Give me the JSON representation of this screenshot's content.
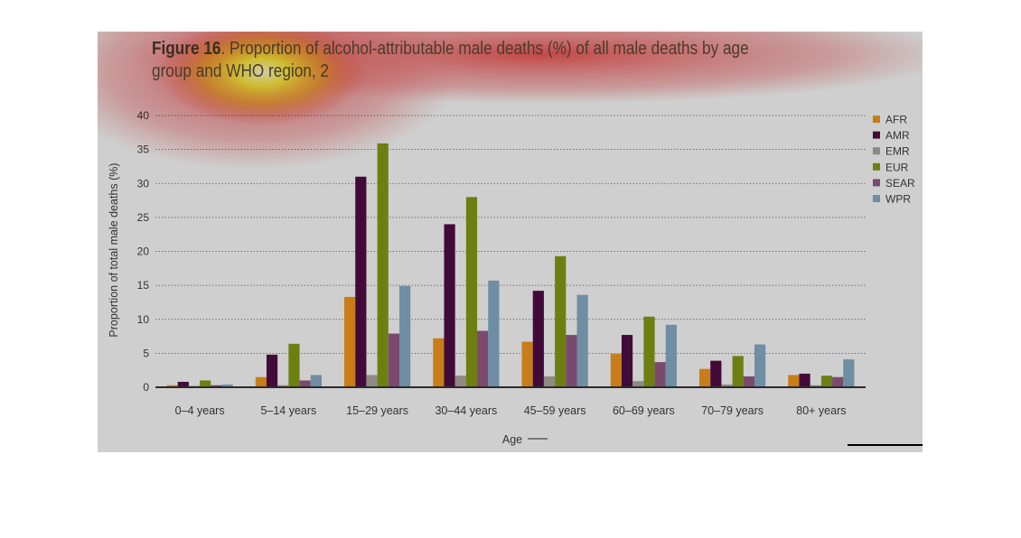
{
  "title": {
    "prefix": "Figure 16",
    "text": ". Proportion of alcohol-attributable male deaths (%) of all male deaths by age group and WHO region, 2"
  },
  "colors": {
    "AFR": "#c87d18",
    "AMR": "#420a38",
    "EMR": "#8f8a80",
    "EUR": "#6e7f12",
    "SEAR": "#7a4a6e",
    "WPR": "#6f8da3"
  },
  "chart_data": {
    "type": "bar",
    "categories": [
      "0–4 years",
      "5–14 years",
      "15–29 years",
      "30–44 years",
      "45–59 years",
      "60–69 years",
      "70–79 years",
      "80+ years"
    ],
    "series": [
      {
        "name": "AFR",
        "values": [
          0.3,
          1.5,
          13.3,
          7.2,
          6.7,
          4.9,
          2.7,
          1.8
        ]
      },
      {
        "name": "AMR",
        "values": [
          0.8,
          4.8,
          31.0,
          24.0,
          14.2,
          7.7,
          3.9,
          2.0
        ]
      },
      {
        "name": "EMR",
        "values": [
          0.2,
          0.3,
          1.8,
          1.7,
          1.6,
          0.9,
          0.4,
          0.3
        ]
      },
      {
        "name": "EUR",
        "values": [
          1.0,
          6.4,
          35.9,
          28.0,
          19.3,
          10.4,
          4.6,
          1.7
        ]
      },
      {
        "name": "SEAR",
        "values": [
          0.3,
          1.0,
          7.9,
          8.3,
          7.7,
          3.7,
          1.6,
          1.5
        ]
      },
      {
        "name": "WPR",
        "values": [
          0.4,
          1.8,
          14.9,
          15.7,
          13.6,
          9.2,
          6.3,
          4.1
        ]
      }
    ],
    "xlabel": "Age",
    "ylabel": "Proportion of total male deaths (%)",
    "ylim": [
      0,
      40
    ],
    "yticks": [
      "0",
      "5",
      "10",
      "15",
      "20",
      "25",
      "30",
      "35",
      "40"
    ],
    "grid": true,
    "legend_position": "right"
  }
}
